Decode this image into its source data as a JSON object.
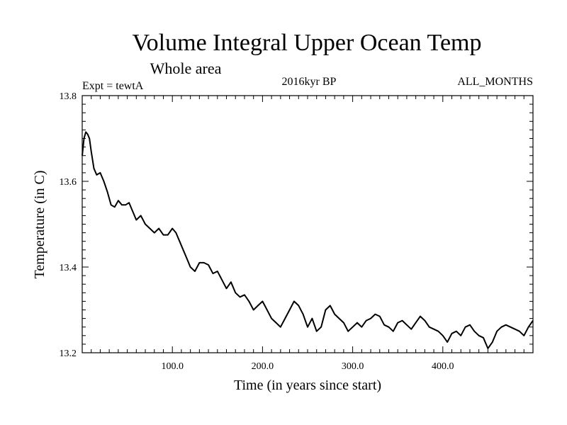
{
  "chart_data": {
    "type": "line",
    "title": "Volume Integral Upper Ocean Temp",
    "subtitle": "Whole area",
    "experiment": "Expt = tewtA",
    "period": "2016kyr BP",
    "months": "ALL_MONTHS",
    "xlabel": "Time (in years since start)",
    "ylabel": "Temperature (in C)",
    "xlim": [
      0,
      500
    ],
    "ylim": [
      13.2,
      13.8
    ],
    "xticks": [
      100,
      200,
      300,
      400
    ],
    "xtick_labels": [
      "100.0",
      "200.0",
      "300.0",
      "400.0"
    ],
    "yticks": [
      13.2,
      13.4,
      13.6,
      13.8
    ],
    "ytick_labels": [
      "13.2",
      "13.4",
      "13.6",
      "13.8"
    ],
    "grid": false,
    "series": [
      {
        "name": "Temperature",
        "color": "#000000",
        "x": [
          0,
          2,
          4,
          6,
          8,
          10,
          13,
          16,
          20,
          24,
          28,
          32,
          36,
          40,
          44,
          48,
          52,
          56,
          60,
          65,
          70,
          75,
          80,
          85,
          90,
          95,
          100,
          104,
          108,
          112,
          116,
          120,
          125,
          130,
          135,
          140,
          145,
          150,
          155,
          160,
          165,
          170,
          175,
          180,
          185,
          190,
          195,
          200,
          205,
          210,
          215,
          220,
          225,
          230,
          235,
          240,
          245,
          250,
          255,
          260,
          265,
          270,
          275,
          280,
          285,
          290,
          295,
          300,
          305,
          310,
          315,
          320,
          325,
          330,
          335,
          340,
          345,
          350,
          355,
          360,
          365,
          370,
          375,
          380,
          385,
          390,
          395,
          400,
          405,
          410,
          415,
          420,
          425,
          430,
          435,
          440,
          445,
          450,
          455,
          460,
          465,
          470,
          475,
          480,
          485,
          490,
          495,
          500
        ],
        "values": [
          13.66,
          13.7,
          13.715,
          13.71,
          13.7,
          13.67,
          13.63,
          13.615,
          13.62,
          13.6,
          13.575,
          13.545,
          13.54,
          13.555,
          13.545,
          13.545,
          13.55,
          13.53,
          13.51,
          13.52,
          13.5,
          13.49,
          13.48,
          13.49,
          13.475,
          13.475,
          13.49,
          13.48,
          13.46,
          13.44,
          13.42,
          13.4,
          13.39,
          13.41,
          13.41,
          13.405,
          13.385,
          13.39,
          13.37,
          13.35,
          13.365,
          13.34,
          13.33,
          13.335,
          13.32,
          13.3,
          13.31,
          13.32,
          13.3,
          13.28,
          13.27,
          13.26,
          13.28,
          13.3,
          13.32,
          13.31,
          13.29,
          13.26,
          13.28,
          13.25,
          13.26,
          13.3,
          13.31,
          13.29,
          13.28,
          13.27,
          13.25,
          13.26,
          13.27,
          13.26,
          13.275,
          13.28,
          13.29,
          13.285,
          13.265,
          13.26,
          13.25,
          13.27,
          13.275,
          13.265,
          13.255,
          13.27,
          13.285,
          13.275,
          13.26,
          13.255,
          13.25,
          13.24,
          13.225,
          13.245,
          13.25,
          13.24,
          13.26,
          13.265,
          13.25,
          13.24,
          13.235,
          13.21,
          13.225,
          13.25,
          13.26,
          13.265,
          13.26,
          13.255,
          13.25,
          13.24,
          13.26,
          13.275
        ]
      }
    ]
  }
}
